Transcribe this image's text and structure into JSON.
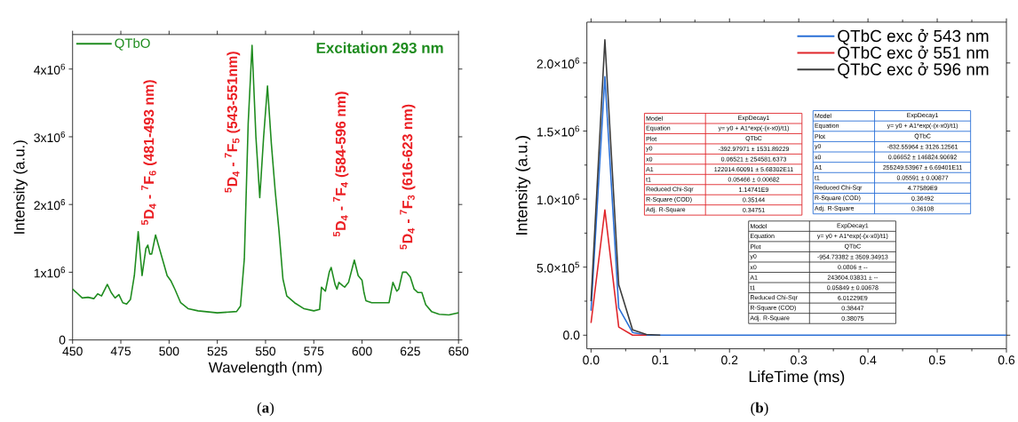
{
  "chart_data": [
    {
      "type": "line",
      "xlabel": "Wavelength (nm)",
      "ylabel": "Intensity (a.u.)",
      "xlim": [
        450,
        650
      ],
      "xticks": [
        450,
        475,
        500,
        525,
        550,
        575,
        600,
        625,
        650
      ],
      "ylim": [
        0,
        4510000.0
      ],
      "yticks": [
        0,
        {
          "value": 1000000.0,
          "label": "1x10$^{6}$"
        },
        {
          "value": 2000000.0,
          "label": "2x10$^{6}$"
        },
        {
          "value": 3000000.0,
          "label": "3x10$^{6}$"
        },
        {
          "value": 4000000.0,
          "label": "4x10$^{6}$"
        }
      ],
      "series": [
        {
          "name": "QTbO",
          "color": "#1f8c1f",
          "x": [
            450,
            452,
            455,
            458,
            461,
            463,
            465,
            468,
            470,
            472,
            474,
            476,
            478,
            480,
            482,
            484,
            486,
            488,
            489,
            490,
            491,
            493,
            495,
            497,
            499,
            501,
            503,
            506,
            510,
            515,
            525,
            535,
            537,
            539,
            541,
            543,
            545,
            547,
            549,
            551,
            553,
            555,
            557,
            559,
            561,
            565,
            570,
            575,
            578,
            579,
            581,
            583,
            584,
            586,
            587,
            588,
            590,
            591,
            593,
            596,
            598,
            600,
            601,
            602,
            605,
            614,
            616,
            618,
            619,
            621,
            623,
            625,
            627,
            629,
            631,
            633,
            636,
            640,
            645,
            648,
            650
          ],
          "values": [
            750000.0,
            700000.0,
            620000.0,
            630000.0,
            610000.0,
            680000.0,
            650000.0,
            820000.0,
            700000.0,
            620000.0,
            670000.0,
            550000.0,
            530000.0,
            600000.0,
            950000.0,
            1600000.0,
            950000.0,
            1350000.0,
            1400000.0,
            1270000.0,
            1270000.0,
            1550000.0,
            1350000.0,
            1150000.0,
            950000.0,
            870000.0,
            750000.0,
            550000.0,
            460000.0,
            430000.0,
            400000.0,
            420000.0,
            500000.0,
            1200000.0,
            3200000.0,
            4350000.0,
            3000000.0,
            2100000.0,
            3000000.0,
            3750000.0,
            2900000.0,
            2200000.0,
            1600000.0,
            900000.0,
            650000.0,
            550000.0,
            460000.0,
            430000.0,
            450000.0,
            780000.0,
            720000.0,
            1000000.0,
            1070000.0,
            820000.0,
            750000.0,
            850000.0,
            800000.0,
            780000.0,
            850000.0,
            1180000.0,
            950000.0,
            880000.0,
            700000.0,
            580000.0,
            550000.0,
            550000.0,
            850000.0,
            720000.0,
            750000.0,
            1000000.0,
            1000000.0,
            930000.0,
            750000.0,
            700000.0,
            700000.0,
            520000.0,
            420000.0,
            380000.0,
            370000.0,
            390000.0,
            400000.0
          ]
        }
      ],
      "legend": "top left",
      "marker": "none",
      "line_style": "solid",
      "annotations": [
        "Excitation 293 nm",
        "$^{5}$D$_{4}$ - $^{7}$F$_{6}$ (481-493 nm)",
        "$^{5}$D$_{4}$ - $^{7}$F$_{5}$ (543-551nm)",
        "$^{5}$D$_{4}$ - $^{7}$F$_{4}$ (584-596 nm)",
        "$^{5}$D$_{4}$ - $^{7}$F$_{3}$ (616-623 nm)",
        "(**a**)"
      ]
    },
    {
      "type": "line",
      "xlabel": "LifeTime (ms)",
      "ylabel": "Intensity (a.u.)",
      "xlim": [
        -0.006,
        0.6
      ],
      "xticks": [
        {
          "value": 0,
          "label": "0.0"
        },
        0.1,
        0.2,
        0.3,
        0.4,
        0.5,
        0.6
      ],
      "ylim": [
        -100000.0,
        2300000.0
      ],
      "yticks": [
        {
          "value": 0,
          "label": "0.0"
        },
        {
          "value": 500000.0,
          "label": "5.0×10$^{5}$"
        },
        {
          "value": 1000000.0,
          "label": "1.0×10$^{6}$"
        },
        {
          "value": 1500000.0,
          "label": "1.5×10$^{6}$"
        },
        {
          "value": 2000000.0,
          "label": "2.0×10$^{6}$"
        }
      ],
      "series": [
        {
          "name": "QTbC exc ở 543 nm",
          "color": "#2a6fd6",
          "x": [
            0,
            0.02,
            0.04,
            0.06,
            0.08,
            0.1,
            0.6
          ],
          "values": [
            180000.0,
            1900000.0,
            200000.0,
            20000.0,
            0,
            0,
            0
          ]
        },
        {
          "name": "QTbC exc ở 551 nm",
          "color": "#e0262b",
          "x": [
            0,
            0.02,
            0.04,
            0.06,
            0.08
          ],
          "values": [
            90000.0,
            920000.0,
            60000.0,
            0,
            0
          ]
        },
        {
          "name": "QTbC exc ở 596 nm",
          "color": "#3c3c3c",
          "x": [
            0,
            0.02,
            0.04,
            0.06,
            0.08,
            0.1
          ],
          "values": [
            250000.0,
            2170000.0,
            370000.0,
            40000.0,
            5000.0,
            0
          ]
        }
      ],
      "legend": "top right",
      "marker": "none",
      "line_style": "solid",
      "annotations": [
        "Model",
        "ExpDecay1",
        "Equation",
        "y= y0 + A1*exp(-(x-x0)/t1)",
        "Plot",
        "QTbC",
        "y0",
        "-392.97971 ± 1531.89229",
        "x0",
        "0.06521 ± 254581.6373",
        "A1",
        "122014.60091 ± 5.68302E11",
        "t1",
        "0.05466 ± 0.00682",
        "Reduced Chi-Sqr",
        "1.14741E9",
        "R-Square (COD)",
        "0.35144",
        "Adj. R-Square",
        "0.34751",
        "Model",
        "ExpDecay1",
        "Equation",
        "y= y0 + A1*exp(-(x-x0)/t1)",
        "Plot",
        "QTbC",
        "y0",
        "-832.55964 ± 3126.12561",
        "x0",
        "0.06652 ± 146824.90692",
        "A1",
        "255249.53967 ± 6.69401E11",
        "t1",
        "0.05591 ± 0.00877",
        "Reduced Chi-Sqr",
        "4.77589E9",
        "R-Square (COD)",
        "0.36492",
        "Adj. R-Square",
        "0.36108",
        "Model",
        "ExpDecay1",
        "Equation",
        "y= y0 + A1*exp(-(x-x0)/t1)",
        "Plot",
        "QTbC",
        "y0",
        "-954.73382 ± 3509.34913",
        "x0",
        "0.0806 ± --",
        "A1",
        "243604.03831 ± --",
        "t1",
        "0.05849 ± 0.00678",
        "Reduced Chi-Sqr",
        "6.01229E9",
        "R-Square (COD)",
        "0.38447",
        "Adj. R-Square",
        "0.38075",
        "(**b**)"
      ]
    }
  ]
}
